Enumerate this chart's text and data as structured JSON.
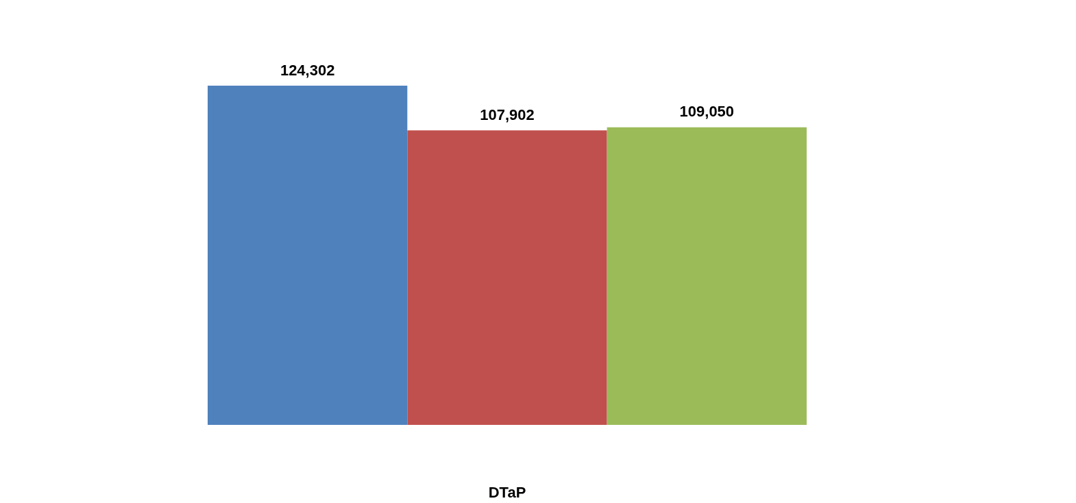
{
  "chart_data": {
    "type": "bar",
    "categories": [
      null,
      null,
      null
    ],
    "xlabel": "DTaP",
    "values": [
      124302,
      107902,
      109050
    ],
    "value_labels": [
      "124,302",
      "107,902",
      "109,050"
    ],
    "colors": [
      "#4f81bd",
      "#c0504d",
      "#9bbb59"
    ],
    "grid": false
  }
}
